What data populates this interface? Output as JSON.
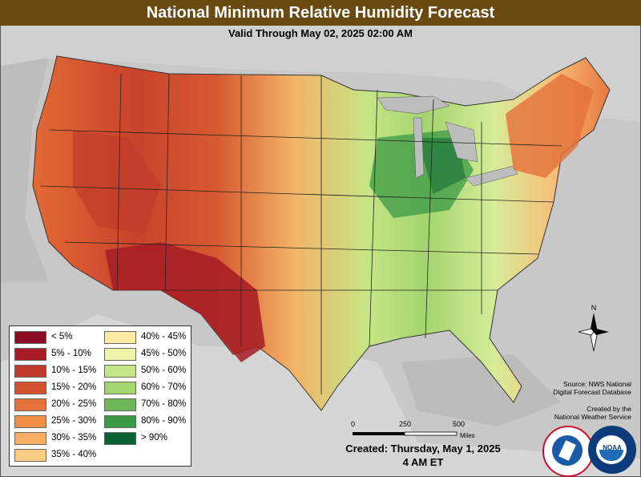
{
  "title": "National Minimum Relative Humidity Forecast",
  "subtitle": "Valid Through May 02, 2025 02:00 AM",
  "legend": [
    {
      "label": "< 5%",
      "color": "#8b0c23"
    },
    {
      "label": "5% - 10%",
      "color": "#a61b25"
    },
    {
      "label": "10% - 15%",
      "color": "#c23a29"
    },
    {
      "label": "15% - 20%",
      "color": "#d5522e"
    },
    {
      "label": "20% - 25%",
      "color": "#e5703a"
    },
    {
      "label": "25% - 30%",
      "color": "#f08f45"
    },
    {
      "label": "30% - 35%",
      "color": "#f6ae62"
    },
    {
      "label": "35% - 40%",
      "color": "#fbcd85"
    },
    {
      "label": "40% - 45%",
      "color": "#fde9a2"
    },
    {
      "label": "45% - 50%",
      "color": "#eef5a8"
    },
    {
      "label": "50% - 60%",
      "color": "#c6e586"
    },
    {
      "label": "60% - 70%",
      "color": "#a4d46f"
    },
    {
      "label": "70% - 80%",
      "color": "#6db65a"
    },
    {
      "label": "80% - 90%",
      "color": "#3b9a46"
    },
    {
      "label": "> 90%",
      "color": "#0a6131"
    }
  ],
  "source_lines": [
    "Source: NWS National",
    "Digital Forecast Database"
  ],
  "created_by_lines": [
    "Created by the",
    "National Weather Service"
  ],
  "created": "Created: Thursday, May 1, 2025",
  "created_time": "4 AM ET",
  "scale": {
    "labels": [
      "0",
      "250",
      "500"
    ],
    "unit": "Miles"
  },
  "compass_letter": "N",
  "logos": {
    "nws_text": "NATIONAL WEATHER SERVICE",
    "noaa_text": "NOAA"
  }
}
